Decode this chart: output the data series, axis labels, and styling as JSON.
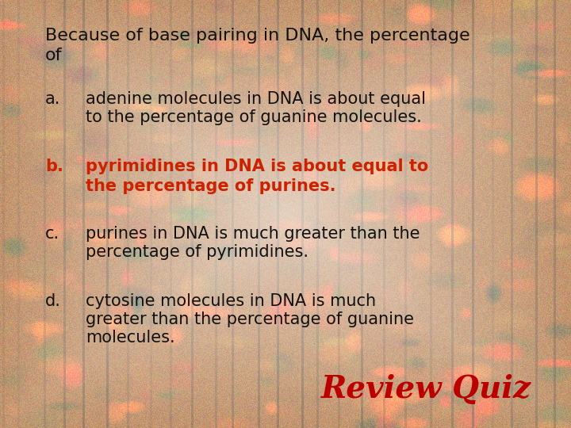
{
  "title_line1": "Because of base pairing in DNA, the percentage",
  "title_line2": "of",
  "options": [
    {
      "label": "a.",
      "text_line1": "adenine molecules in DNA is about equal",
      "text_line2": "to the percentage of guanine molecules.",
      "color": "#111111",
      "bold": false
    },
    {
      "label": "b.",
      "text_line1": "pyrimidines in DNA is about equal to",
      "text_line2": "the percentage of purines.",
      "color": "#cc2200",
      "bold": true
    },
    {
      "label": "c.",
      "text_line1": "purines in DNA is much greater than the",
      "text_line2": "percentage of pyrimidines.",
      "color": "#111111",
      "bold": false
    },
    {
      "label": "d.",
      "text_line1": "cytosine molecules in DNA is much",
      "text_line2": "greater than the percentage of guanine",
      "text_line3": "molecules.",
      "color": "#111111",
      "bold": false
    }
  ],
  "review_quiz_text": "Review Quiz",
  "review_quiz_color": "#bb0000",
  "font_size_title": 16,
  "font_size_options": 15,
  "font_size_review": 28,
  "bg_base_r": 160,
  "bg_base_g": 90,
  "bg_base_b": 30,
  "overlay_alpha": 0.72
}
